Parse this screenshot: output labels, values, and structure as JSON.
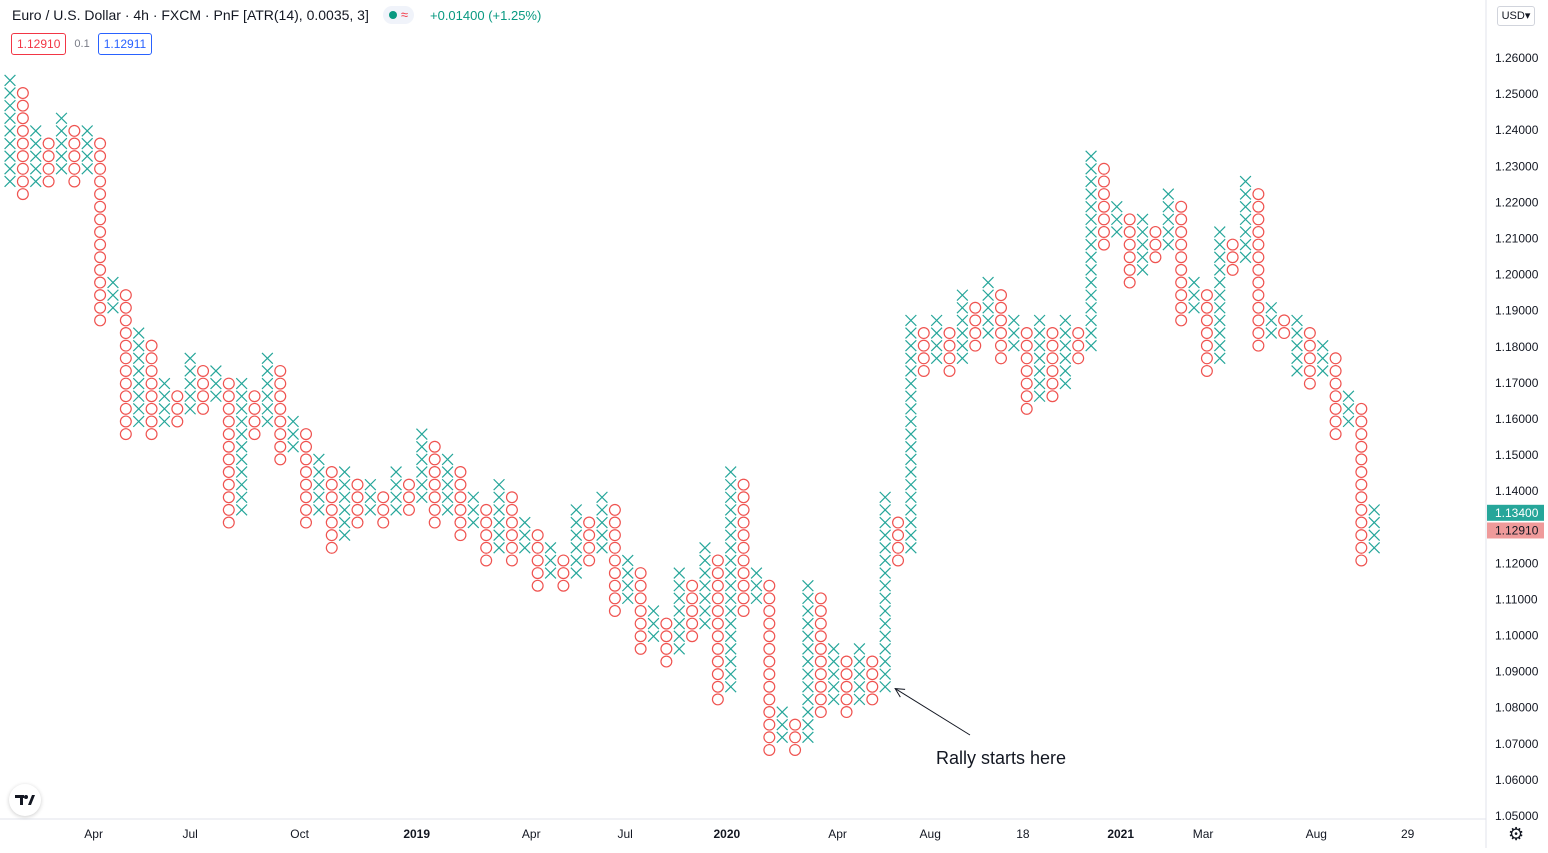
{
  "header": {
    "symbol": "Euro / U.S. Dollar · 4h · FXCM · PnF [ATR(14), 0.0035, 3]",
    "status_icon": "≈",
    "change": "+0.01400 (+1.25%)"
  },
  "quote": {
    "sell": "1.12910",
    "spread": "0.1",
    "buy": "1.12911"
  },
  "currency_button": "USD",
  "colors": {
    "up": "#26a69a",
    "down": "#ef5350",
    "up_label": "#26a69a",
    "down_label": "#ef9a9a"
  },
  "chart_data": {
    "type": "point-and-figure",
    "title": "Euro / U.S. Dollar",
    "box_size": 0.0035,
    "reversal": 3,
    "ylim": [
      1.05,
      1.265
    ],
    "y_ticks": [
      "1.26000",
      "1.25000",
      "1.24000",
      "1.23000",
      "1.22000",
      "1.21000",
      "1.20000",
      "1.19000",
      "1.18000",
      "1.17000",
      "1.16000",
      "1.15000",
      "1.14000",
      "1.13000",
      "1.12000",
      "1.11000",
      "1.10000",
      "1.09000",
      "1.08000",
      "1.07000",
      "1.06000",
      "1.05000"
    ],
    "x_ticks": [
      {
        "label": "Apr",
        "col": 6.5
      },
      {
        "label": "Jul",
        "col": 14
      },
      {
        "label": "Oct",
        "col": 22.5
      },
      {
        "label": "2019",
        "col": 31.6,
        "bold": true
      },
      {
        "label": "Apr",
        "col": 40.5
      },
      {
        "label": "Jul",
        "col": 47.8
      },
      {
        "label": "2020",
        "col": 55.7,
        "bold": true
      },
      {
        "label": "Apr",
        "col": 64.3
      },
      {
        "label": "Aug",
        "col": 71.5
      },
      {
        "label": "18",
        "col": 78.7
      },
      {
        "label": "2021",
        "col": 86.3,
        "bold": true
      },
      {
        "label": "Mar",
        "col": 92.7
      },
      {
        "label": "Aug",
        "col": 101.5
      },
      {
        "label": "29",
        "col": 108.6
      }
    ],
    "columns": [
      {
        "t": "X",
        "lo": 1.2258,
        "hi": 1.2538
      },
      {
        "t": "O",
        "lo": 1.2223,
        "hi": 1.2503
      },
      {
        "t": "X",
        "lo": 1.2258,
        "hi": 1.2398
      },
      {
        "t": "O",
        "lo": 1.2258,
        "hi": 1.2363
      },
      {
        "t": "X",
        "lo": 1.2293,
        "hi": 1.2433
      },
      {
        "t": "O",
        "lo": 1.2258,
        "hi": 1.2398
      },
      {
        "t": "X",
        "lo": 1.2293,
        "hi": 1.2398
      },
      {
        "t": "O",
        "lo": 1.1873,
        "hi": 1.2363
      },
      {
        "t": "X",
        "lo": 1.1908,
        "hi": 1.1978
      },
      {
        "t": "O",
        "lo": 1.1558,
        "hi": 1.1943
      },
      {
        "t": "X",
        "lo": 1.1593,
        "hi": 1.1838
      },
      {
        "t": "O",
        "lo": 1.1558,
        "hi": 1.1803
      },
      {
        "t": "X",
        "lo": 1.1593,
        "hi": 1.1698
      },
      {
        "t": "O",
        "lo": 1.1593,
        "hi": 1.1663
      },
      {
        "t": "X",
        "lo": 1.1628,
        "hi": 1.1768
      },
      {
        "t": "O",
        "lo": 1.1628,
        "hi": 1.1733
      },
      {
        "t": "X",
        "lo": 1.1663,
        "hi": 1.1733
      },
      {
        "t": "O",
        "lo": 1.1313,
        "hi": 1.1698
      },
      {
        "t": "X",
        "lo": 1.1348,
        "hi": 1.1698
      },
      {
        "t": "O",
        "lo": 1.1558,
        "hi": 1.1663
      },
      {
        "t": "X",
        "lo": 1.1593,
        "hi": 1.1768
      },
      {
        "t": "O",
        "lo": 1.1488,
        "hi": 1.1733
      },
      {
        "t": "X",
        "lo": 1.1523,
        "hi": 1.1593
      },
      {
        "t": "O",
        "lo": 1.1313,
        "hi": 1.1558
      },
      {
        "t": "X",
        "lo": 1.1348,
        "hi": 1.1488
      },
      {
        "t": "O",
        "lo": 1.1243,
        "hi": 1.1453
      },
      {
        "t": "X",
        "lo": 1.1278,
        "hi": 1.1453
      },
      {
        "t": "O",
        "lo": 1.1313,
        "hi": 1.1418
      },
      {
        "t": "X",
        "lo": 1.1348,
        "hi": 1.1418
      },
      {
        "t": "O",
        "lo": 1.1313,
        "hi": 1.1383
      },
      {
        "t": "X",
        "lo": 1.1348,
        "hi": 1.1453
      },
      {
        "t": "O",
        "lo": 1.1348,
        "hi": 1.1418
      },
      {
        "t": "X",
        "lo": 1.1383,
        "hi": 1.1558
      },
      {
        "t": "O",
        "lo": 1.1313,
        "hi": 1.1523
      },
      {
        "t": "X",
        "lo": 1.1348,
        "hi": 1.1488
      },
      {
        "t": "O",
        "lo": 1.1278,
        "hi": 1.1453
      },
      {
        "t": "X",
        "lo": 1.1313,
        "hi": 1.1383
      },
      {
        "t": "O",
        "lo": 1.1208,
        "hi": 1.1348
      },
      {
        "t": "X",
        "lo": 1.1243,
        "hi": 1.1418
      },
      {
        "t": "O",
        "lo": 1.1208,
        "hi": 1.1383
      },
      {
        "t": "X",
        "lo": 1.1243,
        "hi": 1.1313
      },
      {
        "t": "O",
        "lo": 1.1138,
        "hi": 1.1278
      },
      {
        "t": "X",
        "lo": 1.1173,
        "hi": 1.1243
      },
      {
        "t": "O",
        "lo": 1.1138,
        "hi": 1.1208
      },
      {
        "t": "X",
        "lo": 1.1173,
        "hi": 1.1348
      },
      {
        "t": "O",
        "lo": 1.1208,
        "hi": 1.1313
      },
      {
        "t": "X",
        "lo": 1.1243,
        "hi": 1.1383
      },
      {
        "t": "O",
        "lo": 1.1068,
        "hi": 1.1348
      },
      {
        "t": "X",
        "lo": 1.1103,
        "hi": 1.1208
      },
      {
        "t": "O",
        "lo": 1.0963,
        "hi": 1.1173
      },
      {
        "t": "X",
        "lo": 1.0998,
        "hi": 1.1068
      },
      {
        "t": "O",
        "lo": 1.0928,
        "hi": 1.1033
      },
      {
        "t": "X",
        "lo": 1.0963,
        "hi": 1.1173
      },
      {
        "t": "O",
        "lo": 1.0998,
        "hi": 1.1138
      },
      {
        "t": "X",
        "lo": 1.1033,
        "hi": 1.1243
      },
      {
        "t": "O",
        "lo": 1.0823,
        "hi": 1.1208
      },
      {
        "t": "X",
        "lo": 1.0858,
        "hi": 1.1453
      },
      {
        "t": "O",
        "lo": 1.1068,
        "hi": 1.1418
      },
      {
        "t": "X",
        "lo": 1.1103,
        "hi": 1.1173
      },
      {
        "t": "O",
        "lo": 1.0683,
        "hi": 1.1138
      },
      {
        "t": "X",
        "lo": 1.0718,
        "hi": 1.0788
      },
      {
        "t": "O",
        "lo": 1.0683,
        "hi": 1.0753
      },
      {
        "t": "X",
        "lo": 1.0718,
        "hi": 1.1138
      },
      {
        "t": "O",
        "lo": 1.0788,
        "hi": 1.1103
      },
      {
        "t": "X",
        "lo": 1.0823,
        "hi": 1.0963
      },
      {
        "t": "O",
        "lo": 1.0788,
        "hi": 1.0928
      },
      {
        "t": "X",
        "lo": 1.0823,
        "hi": 1.0963
      },
      {
        "t": "O",
        "lo": 1.0823,
        "hi": 1.0928
      },
      {
        "t": "X",
        "lo": 1.0858,
        "hi": 1.1383
      },
      {
        "t": "O",
        "lo": 1.1208,
        "hi": 1.1313
      },
      {
        "t": "X",
        "lo": 1.1243,
        "hi": 1.1873
      },
      {
        "t": "O",
        "lo": 1.1733,
        "hi": 1.1838
      },
      {
        "t": "X",
        "lo": 1.1768,
        "hi": 1.1873
      },
      {
        "t": "O",
        "lo": 1.1733,
        "hi": 1.1838
      },
      {
        "t": "X",
        "lo": 1.1768,
        "hi": 1.1943
      },
      {
        "t": "O",
        "lo": 1.1803,
        "hi": 1.1908
      },
      {
        "t": "X",
        "lo": 1.1838,
        "hi": 1.1978
      },
      {
        "t": "O",
        "lo": 1.1768,
        "hi": 1.1943
      },
      {
        "t": "X",
        "lo": 1.1803,
        "hi": 1.1873
      },
      {
        "t": "O",
        "lo": 1.1628,
        "hi": 1.1838
      },
      {
        "t": "X",
        "lo": 1.1663,
        "hi": 1.1873
      },
      {
        "t": "O",
        "lo": 1.1663,
        "hi": 1.1838
      },
      {
        "t": "X",
        "lo": 1.1698,
        "hi": 1.1873
      },
      {
        "t": "O",
        "lo": 1.1768,
        "hi": 1.1838
      },
      {
        "t": "X",
        "lo": 1.1803,
        "hi": 1.2328
      },
      {
        "t": "O",
        "lo": 1.2083,
        "hi": 1.2293
      },
      {
        "t": "X",
        "lo": 1.2118,
        "hi": 1.2188
      },
      {
        "t": "O",
        "lo": 1.1978,
        "hi": 1.2153
      },
      {
        "t": "X",
        "lo": 1.2013,
        "hi": 1.2153
      },
      {
        "t": "O",
        "lo": 1.2048,
        "hi": 1.2118
      },
      {
        "t": "X",
        "lo": 1.2083,
        "hi": 1.2223
      },
      {
        "t": "O",
        "lo": 1.1873,
        "hi": 1.2188
      },
      {
        "t": "X",
        "lo": 1.1908,
        "hi": 1.1978
      },
      {
        "t": "O",
        "lo": 1.1733,
        "hi": 1.1943
      },
      {
        "t": "X",
        "lo": 1.1768,
        "hi": 1.2118
      },
      {
        "t": "O",
        "lo": 1.2013,
        "hi": 1.2083
      },
      {
        "t": "X",
        "lo": 1.2048,
        "hi": 1.2258
      },
      {
        "t": "O",
        "lo": 1.1803,
        "hi": 1.2223
      },
      {
        "t": "X",
        "lo": 1.1838,
        "hi": 1.1908
      },
      {
        "t": "O",
        "lo": 1.1838,
        "hi": 1.1873
      },
      {
        "t": "X",
        "lo": 1.1733,
        "hi": 1.1873
      },
      {
        "t": "O",
        "lo": 1.1698,
        "hi": 1.1838
      },
      {
        "t": "X",
        "lo": 1.1733,
        "hi": 1.1803
      },
      {
        "t": "O",
        "lo": 1.1558,
        "hi": 1.1768
      },
      {
        "t": "X",
        "lo": 1.1593,
        "hi": 1.1663
      },
      {
        "t": "O",
        "lo": 1.1208,
        "hi": 1.1628
      },
      {
        "t": "X",
        "lo": 1.1243,
        "hi": 1.1348
      }
    ],
    "last_price": "1.13400",
    "last_price2": "1.12910",
    "annotation": "Rally starts here",
    "annotation_target_col": 68
  }
}
